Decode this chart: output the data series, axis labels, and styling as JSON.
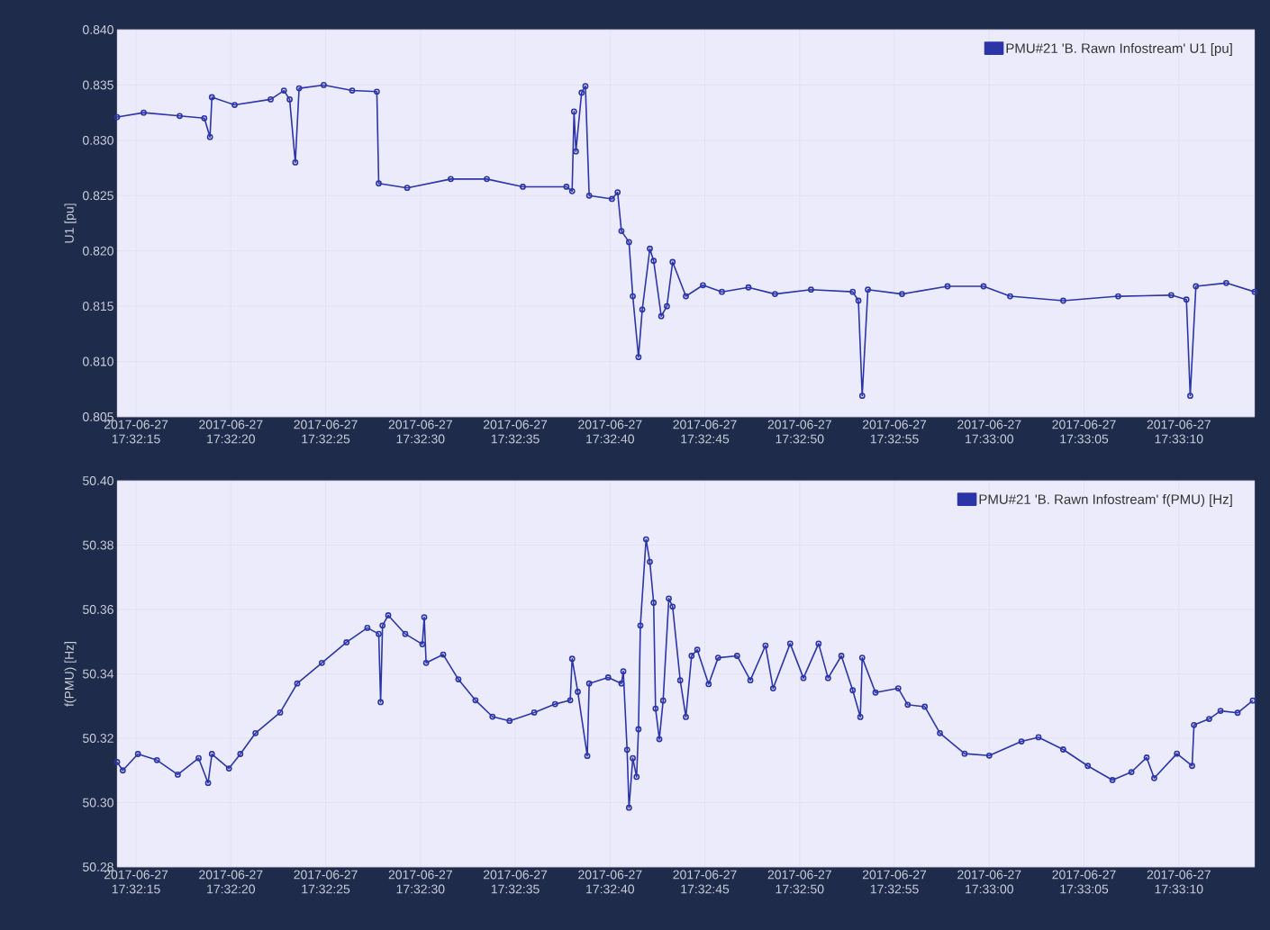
{
  "chart_data": [
    {
      "type": "line",
      "ylabel": "U1 [pu]",
      "grid": true,
      "legend": "top right",
      "marker": "circle",
      "xlim": [
        "2017-06-27T17:32:14.0",
        "2017-06-27T17:33:14.0"
      ],
      "xticks": [
        {
          "value": "2017-06-27T17:32:15",
          "label": "2017-06-27 17:32:15"
        },
        {
          "value": "2017-06-27T17:32:20",
          "label": "2017-06-27 17:32:20"
        },
        {
          "value": "2017-06-27T17:32:25",
          "label": "2017-06-27 17:32:25"
        },
        {
          "value": "2017-06-27T17:32:30",
          "label": "2017-06-27 17:32:30"
        },
        {
          "value": "2017-06-27T17:32:35",
          "label": "2017-06-27 17:32:35"
        },
        {
          "value": "2017-06-27T17:32:40",
          "label": "2017-06-27 17:32:40"
        },
        {
          "value": "2017-06-27T17:32:45",
          "label": "2017-06-27 17:32:45"
        },
        {
          "value": "2017-06-27T17:32:50",
          "label": "2017-06-27 17:32:50"
        },
        {
          "value": "2017-06-27T17:32:55",
          "label": "2017-06-27 17:32:55"
        },
        {
          "value": "2017-06-27T17:33:00",
          "label": "2017-06-27 17:33:00"
        },
        {
          "value": "2017-06-27T17:33:05",
          "label": "2017-06-27 17:33:05"
        },
        {
          "value": "2017-06-27T17:33:10",
          "label": "2017-06-27 17:33:10"
        }
      ],
      "ylim": [
        0.805,
        0.84
      ],
      "yticks": [
        {
          "value": 0.805,
          "label": "0.805"
        },
        {
          "value": 0.81,
          "label": "0.810"
        },
        {
          "value": 0.815,
          "label": "0.815"
        },
        {
          "value": 0.82,
          "label": "0.820"
        },
        {
          "value": 0.825,
          "label": "0.825"
        },
        {
          "value": 0.83,
          "label": "0.830"
        },
        {
          "value": 0.835,
          "label": "0.835"
        },
        {
          "value": 0.84,
          "label": "0.840"
        }
      ],
      "series": [
        {
          "name": "PMU#21 'B. Rawn Infostream' U1 [pu]",
          "color": "#2b35a8",
          "x": [
            "2017-06-27T17:32:14.0",
            "2017-06-27T17:32:15.4",
            "2017-06-27T17:32:17.3",
            "2017-06-27T17:32:18.6",
            "2017-06-27T17:32:18.9",
            "2017-06-27T17:32:19.0",
            "2017-06-27T17:32:20.2",
            "2017-06-27T17:32:22.1",
            "2017-06-27T17:32:22.8",
            "2017-06-27T17:32:23.1",
            "2017-06-27T17:32:23.4",
            "2017-06-27T17:32:23.6",
            "2017-06-27T17:32:24.9",
            "2017-06-27T17:32:26.4",
            "2017-06-27T17:32:27.7",
            "2017-06-27T17:32:27.8",
            "2017-06-27T17:32:29.3",
            "2017-06-27T17:32:31.6",
            "2017-06-27T17:32:33.5",
            "2017-06-27T17:32:35.4",
            "2017-06-27T17:32:37.7",
            "2017-06-27T17:32:38.0",
            "2017-06-27T17:32:38.1",
            "2017-06-27T17:32:38.2",
            "2017-06-27T17:32:38.5",
            "2017-06-27T17:32:38.7",
            "2017-06-27T17:32:38.9",
            "2017-06-27T17:32:40.1",
            "2017-06-27T17:32:40.4",
            "2017-06-27T17:32:40.6",
            "2017-06-27T17:32:41.0",
            "2017-06-27T17:32:41.2",
            "2017-06-27T17:32:41.5",
            "2017-06-27T17:32:41.7",
            "2017-06-27T17:32:42.1",
            "2017-06-27T17:32:42.3",
            "2017-06-27T17:32:42.7",
            "2017-06-27T17:32:43.0",
            "2017-06-27T17:32:43.3",
            "2017-06-27T17:32:44.0",
            "2017-06-27T17:32:44.9",
            "2017-06-27T17:32:45.9",
            "2017-06-27T17:32:47.3",
            "2017-06-27T17:32:48.7",
            "2017-06-27T17:32:50.6",
            "2017-06-27T17:32:52.8",
            "2017-06-27T17:32:53.1",
            "2017-06-27T17:32:53.3",
            "2017-06-27T17:32:53.6",
            "2017-06-27T17:32:55.4",
            "2017-06-27T17:32:57.8",
            "2017-06-27T17:32:59.7",
            "2017-06-27T17:33:01.1",
            "2017-06-27T17:33:03.9",
            "2017-06-27T17:33:06.8",
            "2017-06-27T17:33:09.6",
            "2017-06-27T17:33:10.4",
            "2017-06-27T17:33:10.6",
            "2017-06-27T17:33:10.9",
            "2017-06-27T17:33:12.5",
            "2017-06-27T17:33:14.0"
          ],
          "values": [
            0.8321,
            0.8325,
            0.8322,
            0.832,
            0.8303,
            0.8339,
            0.8332,
            0.8337,
            0.8345,
            0.8337,
            0.828,
            0.8347,
            0.835,
            0.8345,
            0.8344,
            0.8261,
            0.8257,
            0.8265,
            0.8265,
            0.8258,
            0.8258,
            0.8254,
            0.8326,
            0.829,
            0.8343,
            0.8349,
            0.825,
            0.8247,
            0.8253,
            0.8218,
            0.8208,
            0.8159,
            0.8104,
            0.8147,
            0.8202,
            0.8191,
            0.8141,
            0.815,
            0.819,
            0.8159,
            0.8169,
            0.8163,
            0.8167,
            0.8161,
            0.8165,
            0.8163,
            0.8155,
            0.8069,
            0.8165,
            0.8161,
            0.8168,
            0.8168,
            0.8159,
            0.8155,
            0.8159,
            0.816,
            0.8156,
            0.8069,
            0.8168,
            0.8171,
            0.8163
          ]
        }
      ]
    },
    {
      "type": "line",
      "ylabel": "f(PMU) [Hz]",
      "grid": true,
      "legend": "top right",
      "marker": "circle",
      "xlim": [
        "2017-06-27T17:32:14.0",
        "2017-06-27T17:33:14.0"
      ],
      "xticks": [
        {
          "value": "2017-06-27T17:32:15",
          "label": "2017-06-27 17:32:15"
        },
        {
          "value": "2017-06-27T17:32:20",
          "label": "2017-06-27 17:32:20"
        },
        {
          "value": "2017-06-27T17:32:25",
          "label": "2017-06-27 17:32:25"
        },
        {
          "value": "2017-06-27T17:32:30",
          "label": "2017-06-27 17:32:30"
        },
        {
          "value": "2017-06-27T17:32:35",
          "label": "2017-06-27 17:32:35"
        },
        {
          "value": "2017-06-27T17:32:40",
          "label": "2017-06-27 17:32:40"
        },
        {
          "value": "2017-06-27T17:32:45",
          "label": "2017-06-27 17:32:45"
        },
        {
          "value": "2017-06-27T17:32:50",
          "label": "2017-06-27 17:32:50"
        },
        {
          "value": "2017-06-27T17:32:55",
          "label": "2017-06-27 17:32:55"
        },
        {
          "value": "2017-06-27T17:33:00",
          "label": "2017-06-27 17:33:00"
        },
        {
          "value": "2017-06-27T17:33:05",
          "label": "2017-06-27 17:33:05"
        },
        {
          "value": "2017-06-27T17:33:10",
          "label": "2017-06-27 17:33:10"
        }
      ],
      "ylim": [
        50.28,
        50.4
      ],
      "yticks": [
        {
          "value": 50.28,
          "label": "50.28"
        },
        {
          "value": 50.3,
          "label": "50.30"
        },
        {
          "value": 50.32,
          "label": "50.32"
        },
        {
          "value": 50.34,
          "label": "50.34"
        },
        {
          "value": 50.36,
          "label": "50.36"
        },
        {
          "value": 50.38,
          "label": "50.38"
        },
        {
          "value": 50.4,
          "label": "50.40"
        }
      ],
      "series": [
        {
          "name": "PMU#21 'B. Rawn Infostream' f(PMU) [Hz]",
          "color": "#2b35a8",
          "x": [
            "2017-06-27T17:32:14.0",
            "2017-06-27T17:32:14.3",
            "2017-06-27T17:32:15.1",
            "2017-06-27T17:32:16.1",
            "2017-06-27T17:32:17.2",
            "2017-06-27T17:32:18.3",
            "2017-06-27T17:32:18.8",
            "2017-06-27T17:32:19.0",
            "2017-06-27T17:32:19.9",
            "2017-06-27T17:32:20.5",
            "2017-06-27T17:32:21.3",
            "2017-06-27T17:32:22.6",
            "2017-06-27T17:32:23.5",
            "2017-06-27T17:32:24.8",
            "2017-06-27T17:32:26.1",
            "2017-06-27T17:32:27.2",
            "2017-06-27T17:32:27.8",
            "2017-06-27T17:32:27.9",
            "2017-06-27T17:32:28.0",
            "2017-06-27T17:32:28.3",
            "2017-06-27T17:32:29.2",
            "2017-06-27T17:32:30.1",
            "2017-06-27T17:32:30.2",
            "2017-06-27T17:32:30.3",
            "2017-06-27T17:32:31.2",
            "2017-06-27T17:32:32.0",
            "2017-06-27T17:32:32.9",
            "2017-06-27T17:32:33.8",
            "2017-06-27T17:32:34.7",
            "2017-06-27T17:32:36.0",
            "2017-06-27T17:32:37.1",
            "2017-06-27T17:32:37.9",
            "2017-06-27T17:32:38.0",
            "2017-06-27T17:32:38.3",
            "2017-06-27T17:32:38.8",
            "2017-06-27T17:32:38.9",
            "2017-06-27T17:32:39.9",
            "2017-06-27T17:32:40.6",
            "2017-06-27T17:32:40.7",
            "2017-06-27T17:32:40.9",
            "2017-06-27T17:32:41.0",
            "2017-06-27T17:32:41.2",
            "2017-06-27T17:32:41.4",
            "2017-06-27T17:32:41.5",
            "2017-06-27T17:32:41.6",
            "2017-06-27T17:32:41.9",
            "2017-06-27T17:32:42.1",
            "2017-06-27T17:32:42.3",
            "2017-06-27T17:32:42.4",
            "2017-06-27T17:32:42.6",
            "2017-06-27T17:32:42.8",
            "2017-06-27T17:32:43.1",
            "2017-06-27T17:32:43.3",
            "2017-06-27T17:32:43.7",
            "2017-06-27T17:32:44.0",
            "2017-06-27T17:32:44.3",
            "2017-06-27T17:32:44.6",
            "2017-06-27T17:32:45.2",
            "2017-06-27T17:32:45.7",
            "2017-06-27T17:32:46.7",
            "2017-06-27T17:32:47.4",
            "2017-06-27T17:32:48.2",
            "2017-06-27T17:32:48.6",
            "2017-06-27T17:32:49.5",
            "2017-06-27T17:32:50.2",
            "2017-06-27T17:32:51.0",
            "2017-06-27T17:32:51.5",
            "2017-06-27T17:32:52.2",
            "2017-06-27T17:32:52.8",
            "2017-06-27T17:32:53.2",
            "2017-06-27T17:32:53.3",
            "2017-06-27T17:32:54.0",
            "2017-06-27T17:32:55.2",
            "2017-06-27T17:32:55.7",
            "2017-06-27T17:32:56.6",
            "2017-06-27T17:32:57.4",
            "2017-06-27T17:32:58.7",
            "2017-06-27T17:33:00.0",
            "2017-06-27T17:33:01.7",
            "2017-06-27T17:33:02.6",
            "2017-06-27T17:33:03.9",
            "2017-06-27T17:33:05.2",
            "2017-06-27T17:33:06.5",
            "2017-06-27T17:33:07.5",
            "2017-06-27T17:33:08.3",
            "2017-06-27T17:33:08.7",
            "2017-06-27T17:33:09.9",
            "2017-06-27T17:33:10.7",
            "2017-06-27T17:33:10.8",
            "2017-06-27T17:33:11.6",
            "2017-06-27T17:33:12.2",
            "2017-06-27T17:33:13.1",
            "2017-06-27T17:33:13.9"
          ],
          "values": [
            50.3126,
            50.31,
            50.3151,
            50.3132,
            50.3087,
            50.3138,
            50.3061,
            50.3151,
            50.3106,
            50.3151,
            50.3216,
            50.328,
            50.337,
            50.3434,
            50.3498,
            50.3543,
            50.3524,
            50.3312,
            50.355,
            50.3582,
            50.3524,
            50.3492,
            50.3576,
            50.3434,
            50.346,
            50.3383,
            50.3318,
            50.3267,
            50.3254,
            50.328,
            50.3306,
            50.3318,
            50.3447,
            50.3344,
            50.3145,
            50.337,
            50.3389,
            50.337,
            50.3408,
            50.3164,
            50.2984,
            50.3138,
            50.308,
            50.3228,
            50.355,
            50.3818,
            50.3748,
            50.3621,
            50.3292,
            50.3197,
            50.3317,
            50.3634,
            50.3609,
            50.338,
            50.3266,
            50.3456,
            50.3475,
            50.3368,
            50.345,
            50.3456,
            50.338,
            50.3488,
            50.3355,
            50.3494,
            50.3387,
            50.3494,
            50.3387,
            50.3456,
            50.3349,
            50.3266,
            50.345,
            50.3342,
            50.3355,
            50.3304,
            50.3298,
            50.3216,
            50.3152,
            50.3146,
            50.319,
            50.3203,
            50.3165,
            50.3114,
            50.307,
            50.3095,
            50.314,
            50.3076,
            50.3152,
            50.3114,
            50.3241,
            50.326,
            50.3285,
            50.3279,
            50.3317
          ]
        }
      ]
    }
  ]
}
